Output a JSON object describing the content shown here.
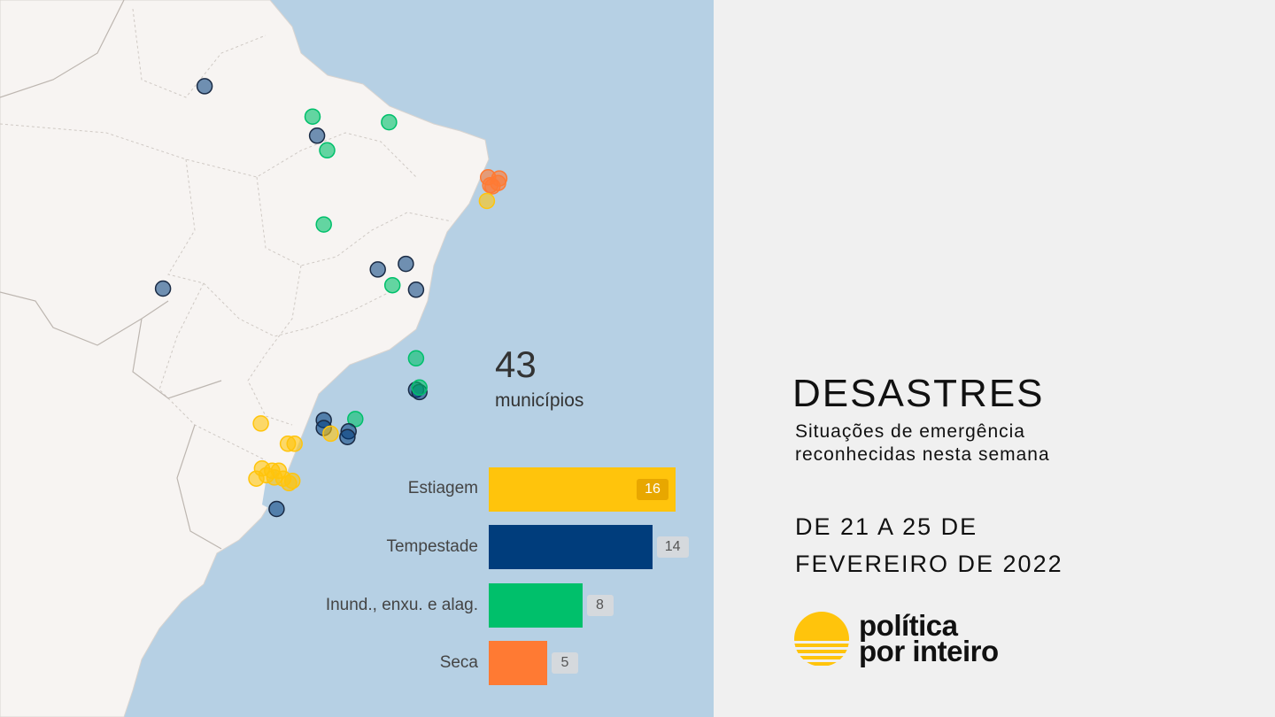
{
  "map": {
    "colors": {
      "ocean": "#b6d0e4",
      "land": "#f7f4f2",
      "estiagem": "#ffc40c",
      "tempestade": "#003d7c",
      "inundacoes": "#00c06b",
      "seca": "#ff7a33"
    },
    "markers": [
      {
        "type": "tempestade",
        "lon": -60.7,
        "lat": 2.8
      },
      {
        "type": "inundacoes",
        "lon": -51.1,
        "lat": 0.1
      },
      {
        "type": "tempestade",
        "lon": -50.7,
        "lat": -1.6
      },
      {
        "type": "inundacoes",
        "lon": -49.8,
        "lat": -2.9
      },
      {
        "type": "inundacoes",
        "lon": -44.3,
        "lat": -0.4
      },
      {
        "type": "seca",
        "lon": -35.5,
        "lat": -5.3
      },
      {
        "type": "seca",
        "lon": -35.1,
        "lat": -6.1
      },
      {
        "type": "seca",
        "lon": -34.6,
        "lat": -5.8
      },
      {
        "type": "seca",
        "lon": -34.5,
        "lat": -5.4
      },
      {
        "type": "seca",
        "lon": -35.3,
        "lat": -6.0
      },
      {
        "type": "estiagem",
        "lon": -35.6,
        "lat": -7.4
      },
      {
        "type": "inundacoes",
        "lon": -50.1,
        "lat": -9.5
      },
      {
        "type": "tempestade",
        "lon": -45.3,
        "lat": -13.5
      },
      {
        "type": "tempestade",
        "lon": -42.8,
        "lat": -13.0
      },
      {
        "type": "inundacoes",
        "lon": -44.0,
        "lat": -14.9
      },
      {
        "type": "tempestade",
        "lon": -41.9,
        "lat": -15.3
      },
      {
        "type": "tempestade",
        "lon": -64.4,
        "lat": -15.2
      },
      {
        "type": "inundacoes",
        "lon": -41.9,
        "lat": -21.4
      },
      {
        "type": "tempestade",
        "lon": -41.9,
        "lat": -24.2
      },
      {
        "type": "tempestade",
        "lon": -41.6,
        "lat": -24.4
      },
      {
        "type": "inundacoes",
        "lon": -41.6,
        "lat": -24.0
      },
      {
        "type": "inundacoes",
        "lon": -47.3,
        "lat": -26.8
      },
      {
        "type": "tempestade",
        "lon": -50.1,
        "lat": -26.9
      },
      {
        "type": "tempestade",
        "lon": -50.1,
        "lat": -27.6
      },
      {
        "type": "tempestade",
        "lon": -47.9,
        "lat": -27.9
      },
      {
        "type": "tempestade",
        "lon": -48.0,
        "lat": -28.4
      },
      {
        "type": "estiagem",
        "lon": -49.5,
        "lat": -28.1
      },
      {
        "type": "estiagem",
        "lon": -55.7,
        "lat": -27.2
      },
      {
        "type": "estiagem",
        "lon": -53.3,
        "lat": -29.0
      },
      {
        "type": "estiagem",
        "lon": -52.7,
        "lat": -29.0
      },
      {
        "type": "estiagem",
        "lon": -55.6,
        "lat": -31.2
      },
      {
        "type": "estiagem",
        "lon": -54.7,
        "lat": -31.4
      },
      {
        "type": "estiagem",
        "lon": -54.1,
        "lat": -31.4
      },
      {
        "type": "estiagem",
        "lon": -55.2,
        "lat": -31.8
      },
      {
        "type": "estiagem",
        "lon": -56.1,
        "lat": -32.1
      },
      {
        "type": "estiagem",
        "lon": -54.5,
        "lat": -32.0
      },
      {
        "type": "estiagem",
        "lon": -53.7,
        "lat": -32.1
      },
      {
        "type": "estiagem",
        "lon": -52.9,
        "lat": -32.3
      },
      {
        "type": "estiagem",
        "lon": -53.2,
        "lat": -32.5
      },
      {
        "type": "tempestade",
        "lon": -54.3,
        "lat": -34.8
      }
    ]
  },
  "chart_data": {
    "type": "bar",
    "orientation": "horizontal",
    "categories": [
      "Estiagem",
      "Tempestade",
      "Inund., enxu. e alag.",
      "Seca"
    ],
    "values": [
      16,
      14,
      8,
      5
    ],
    "colors": [
      "#ffc40c",
      "#003d7c",
      "#00c06b",
      "#ff7a33"
    ],
    "xlim": [
      0,
      16
    ],
    "grid": false,
    "legend": "none"
  },
  "summary": {
    "total_value": "43",
    "total_label": "municípios",
    "labels": [
      "Estiagem",
      "Tempestade",
      "Inund., enxu. e alag.",
      "Seca"
    ],
    "values": [
      "16",
      "14",
      "8",
      "5"
    ]
  },
  "title": {
    "main": "DESASTRES",
    "subtitle_line1": "Situações de emergência",
    "subtitle_line2": "reconhecidas nesta semana",
    "period_line1": "DE 21 A 25 DE",
    "period_line2": "FEVEREIRO DE 2022"
  },
  "logo": {
    "line1": "política",
    "line2": "por inteiro",
    "color": "#ffc40c"
  }
}
